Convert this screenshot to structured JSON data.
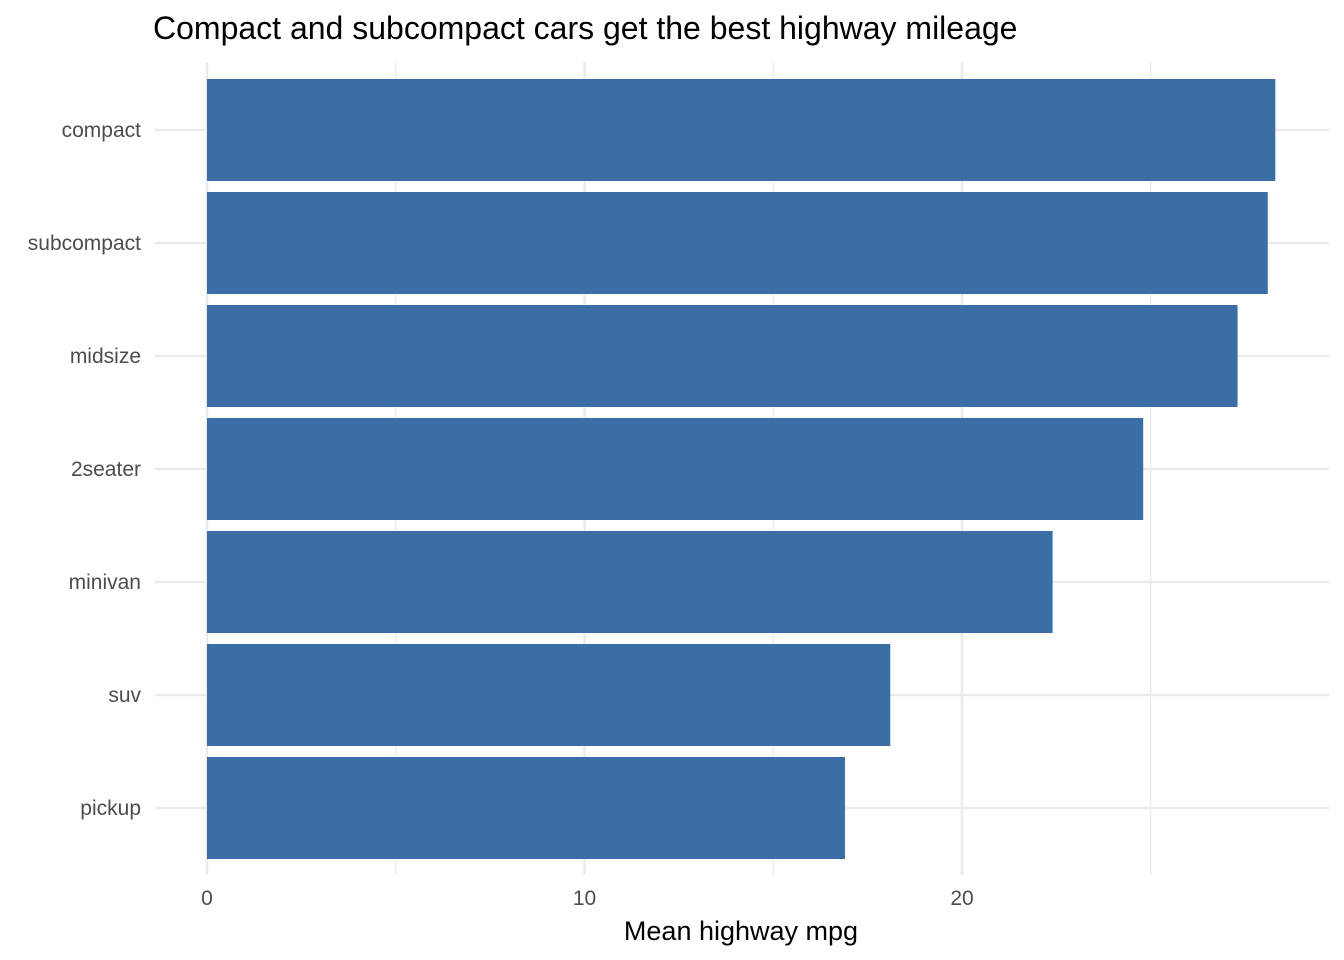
{
  "chart_data": {
    "type": "bar",
    "orientation": "horizontal",
    "title": "Compact and subcompact cars get the best highway mileage",
    "xlabel": "Mean highway mpg",
    "ylabel": "",
    "categories": [
      "compact",
      "subcompact",
      "midsize",
      "2seater",
      "minivan",
      "suv",
      "pickup"
    ],
    "values": [
      28.3,
      28.1,
      27.3,
      24.8,
      22.4,
      18.1,
      16.9
    ],
    "xlim": [
      0,
      29.7
    ],
    "xticks": [
      0,
      10,
      20
    ],
    "xtick_labels": [
      "0",
      "10",
      "20"
    ],
    "grid": true,
    "legend": "none",
    "bar_color": "#3a6ea5",
    "grid_color": "#ebebeb"
  }
}
